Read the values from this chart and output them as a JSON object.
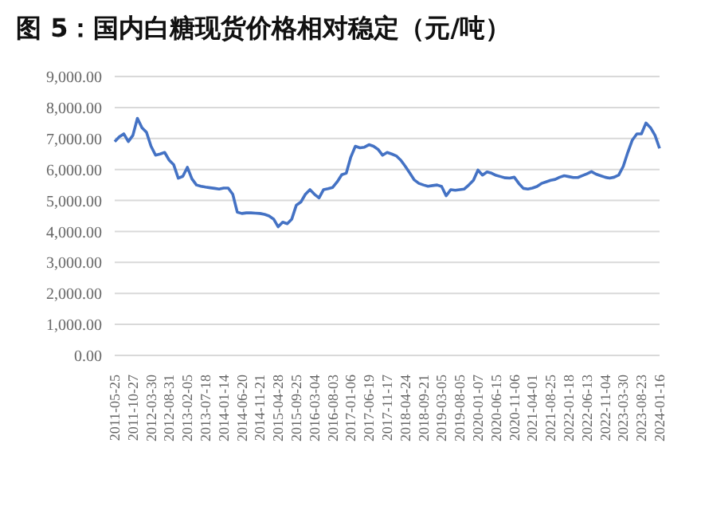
{
  "chart_data": {
    "type": "line",
    "title": "图 5：国内白糖现货价格相对稳定（元/吨）",
    "categories": [
      "2011-05-25",
      null,
      null,
      null,
      "2011-10-27",
      null,
      null,
      null,
      "2012-03-30",
      null,
      null,
      null,
      "2012-08-31",
      null,
      null,
      null,
      "2013-02-05",
      null,
      null,
      null,
      "2013-07-18",
      null,
      null,
      null,
      "2014-01-14",
      null,
      null,
      null,
      "2014-06-20",
      null,
      null,
      null,
      "2014-11-21",
      null,
      null,
      null,
      "2015-04-28",
      null,
      null,
      null,
      "2015-09-25",
      null,
      null,
      null,
      "2016-03-04",
      null,
      null,
      null,
      "2016-08-03",
      null,
      null,
      null,
      "2017-01-06",
      null,
      null,
      null,
      "2017-06-19",
      null,
      null,
      null,
      "2017-11-17",
      null,
      null,
      null,
      "2018-04-24",
      null,
      null,
      null,
      "2018-09-21",
      null,
      null,
      null,
      "2019-03-05",
      null,
      null,
      null,
      "2019-08-05",
      null,
      null,
      null,
      "2020-01-07",
      null,
      null,
      null,
      "2020-06-15",
      null,
      null,
      null,
      "2020-11-06",
      null,
      null,
      null,
      "2021-04-01",
      null,
      null,
      null,
      "2021-08-25",
      null,
      null,
      null,
      "2022-01-18",
      null,
      null,
      null,
      "2022-06-13",
      null,
      null,
      null,
      "2022-11-04",
      null,
      null,
      null,
      "2023-03-30",
      null,
      null,
      null,
      "2023-08-23",
      null,
      null,
      null,
      "2024-01-16"
    ],
    "series": [
      {
        "color": "#4472c4",
        "values": [
          6900,
          7050,
          7150,
          6900,
          7100,
          7650,
          7350,
          7200,
          6750,
          6460,
          6500,
          6550,
          6300,
          6150,
          5720,
          5780,
          6070,
          5700,
          5500,
          5460,
          5430,
          5410,
          5390,
          5370,
          5400,
          5400,
          5200,
          4620,
          4580,
          4600,
          4600,
          4590,
          4580,
          4550,
          4500,
          4400,
          4150,
          4300,
          4250,
          4400,
          4850,
          4950,
          5200,
          5350,
          5200,
          5080,
          5350,
          5380,
          5420,
          5600,
          5830,
          5880,
          6400,
          6750,
          6700,
          6720,
          6800,
          6750,
          6650,
          6460,
          6550,
          6500,
          6440,
          6300,
          6100,
          5880,
          5660,
          5550,
          5500,
          5460,
          5480,
          5500,
          5450,
          5150,
          5350,
          5330,
          5350,
          5370,
          5500,
          5650,
          5980,
          5820,
          5920,
          5880,
          5810,
          5770,
          5730,
          5720,
          5750,
          5550,
          5390,
          5370,
          5400,
          5450,
          5550,
          5600,
          5650,
          5680,
          5750,
          5800,
          5770,
          5740,
          5740,
          5800,
          5860,
          5930,
          5850,
          5800,
          5750,
          5720,
          5750,
          5820,
          6100,
          6550,
          6950,
          7150,
          7150,
          7500,
          7350,
          7100,
          6680
        ]
      }
    ],
    "ylim": [
      0,
      9000
    ],
    "yticks": [
      {
        "value": 0,
        "label": "0.00"
      },
      {
        "value": 1000,
        "label": "1,000.00"
      },
      {
        "value": 2000,
        "label": "2,000.00"
      },
      {
        "value": 3000,
        "label": "3,000.00"
      },
      {
        "value": 4000,
        "label": "4,000.00"
      },
      {
        "value": 5000,
        "label": "5,000.00"
      },
      {
        "value": 6000,
        "label": "6,000.00"
      },
      {
        "value": 7000,
        "label": "7,000.00"
      },
      {
        "value": 8000,
        "label": "8,000.00"
      },
      {
        "value": 9000,
        "label": "9,000.00"
      }
    ],
    "grid": "y",
    "marker": "none",
    "line_style": "solid"
  }
}
